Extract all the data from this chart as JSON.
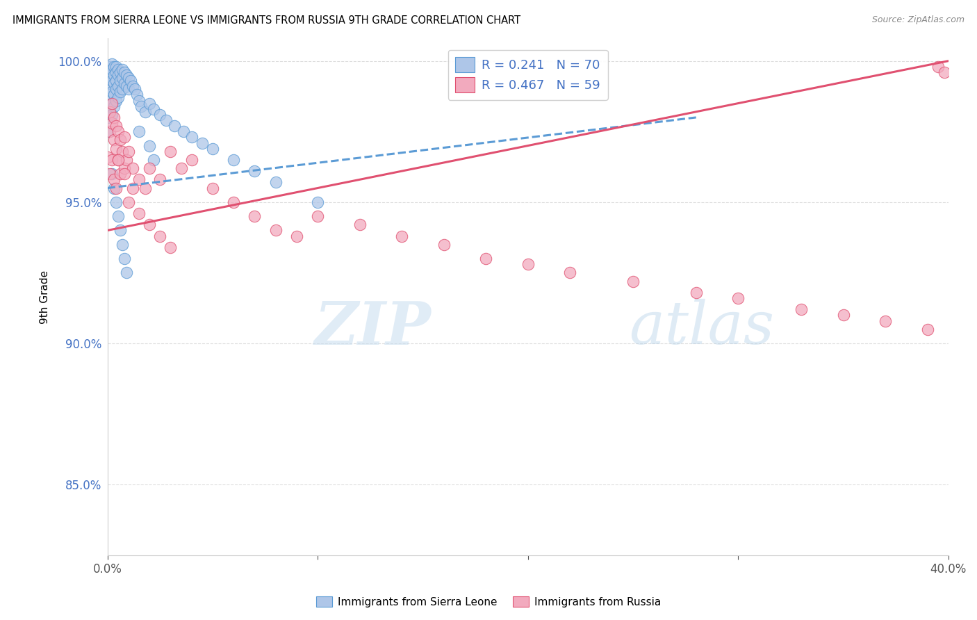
{
  "title": "IMMIGRANTS FROM SIERRA LEONE VS IMMIGRANTS FROM RUSSIA 9TH GRADE CORRELATION CHART",
  "source": "Source: ZipAtlas.com",
  "ylabel": "9th Grade",
  "R_sierra": 0.241,
  "N_sierra": 70,
  "R_russia": 0.467,
  "N_russia": 59,
  "color_sierra": "#aec6e8",
  "color_russia": "#f2aabe",
  "line_color_sierra": "#5b9bd5",
  "line_color_russia": "#e05070",
  "watermark_zip": "ZIP",
  "watermark_atlas": "atlas",
  "xlim": [
    0.0,
    0.4
  ],
  "ylim": [
    0.825,
    1.008
  ],
  "yticks": [
    0.85,
    0.9,
    0.95,
    1.0
  ],
  "ytick_labels": [
    "85.0%",
    "90.0%",
    "95.0%",
    "100.0%"
  ],
  "xticks": [
    0.0,
    0.1,
    0.2,
    0.3,
    0.4
  ],
  "xtick_labels": [
    "0.0%",
    "",
    "",
    "",
    "40.0%"
  ],
  "sierra_x": [
    0.0,
    0.0,
    0.001,
    0.001,
    0.001,
    0.001,
    0.001,
    0.002,
    0.002,
    0.002,
    0.002,
    0.002,
    0.002,
    0.003,
    0.003,
    0.003,
    0.003,
    0.003,
    0.004,
    0.004,
    0.004,
    0.004,
    0.004,
    0.005,
    0.005,
    0.005,
    0.005,
    0.006,
    0.006,
    0.006,
    0.007,
    0.007,
    0.007,
    0.008,
    0.008,
    0.009,
    0.009,
    0.01,
    0.01,
    0.011,
    0.012,
    0.013,
    0.014,
    0.015,
    0.016,
    0.018,
    0.02,
    0.022,
    0.025,
    0.028,
    0.032,
    0.036,
    0.04,
    0.045,
    0.05,
    0.06,
    0.07,
    0.08,
    0.1,
    0.015,
    0.02,
    0.022,
    0.002,
    0.003,
    0.004,
    0.005,
    0.006,
    0.007,
    0.008,
    0.009
  ],
  "sierra_y": [
    0.98,
    0.975,
    0.998,
    0.995,
    0.992,
    0.988,
    0.984,
    0.999,
    0.997,
    0.993,
    0.989,
    0.985,
    0.981,
    0.998,
    0.995,
    0.992,
    0.988,
    0.984,
    0.998,
    0.996,
    0.993,
    0.99,
    0.986,
    0.997,
    0.995,
    0.991,
    0.987,
    0.996,
    0.993,
    0.989,
    0.997,
    0.994,
    0.99,
    0.996,
    0.992,
    0.995,
    0.991,
    0.994,
    0.99,
    0.993,
    0.991,
    0.99,
    0.988,
    0.986,
    0.984,
    0.982,
    0.985,
    0.983,
    0.981,
    0.979,
    0.977,
    0.975,
    0.973,
    0.971,
    0.969,
    0.965,
    0.961,
    0.957,
    0.95,
    0.975,
    0.97,
    0.965,
    0.96,
    0.955,
    0.95,
    0.945,
    0.94,
    0.935,
    0.93,
    0.925
  ],
  "russia_x": [
    0.0,
    0.001,
    0.001,
    0.001,
    0.002,
    0.002,
    0.002,
    0.003,
    0.003,
    0.003,
    0.004,
    0.004,
    0.004,
    0.005,
    0.005,
    0.006,
    0.006,
    0.007,
    0.008,
    0.008,
    0.009,
    0.01,
    0.012,
    0.015,
    0.018,
    0.02,
    0.025,
    0.03,
    0.035,
    0.04,
    0.05,
    0.06,
    0.07,
    0.08,
    0.09,
    0.1,
    0.12,
    0.14,
    0.16,
    0.18,
    0.2,
    0.22,
    0.25,
    0.28,
    0.3,
    0.33,
    0.35,
    0.37,
    0.39,
    0.395,
    0.398,
    0.01,
    0.015,
    0.02,
    0.025,
    0.03,
    0.005,
    0.008,
    0.012
  ],
  "russia_y": [
    0.966,
    0.982,
    0.975,
    0.96,
    0.985,
    0.978,
    0.965,
    0.98,
    0.972,
    0.958,
    0.977,
    0.969,
    0.955,
    0.975,
    0.965,
    0.972,
    0.96,
    0.968,
    0.973,
    0.962,
    0.965,
    0.968,
    0.962,
    0.958,
    0.955,
    0.962,
    0.958,
    0.968,
    0.962,
    0.965,
    0.955,
    0.95,
    0.945,
    0.94,
    0.938,
    0.945,
    0.942,
    0.938,
    0.935,
    0.93,
    0.928,
    0.925,
    0.922,
    0.918,
    0.916,
    0.912,
    0.91,
    0.908,
    0.905,
    0.998,
    0.996,
    0.95,
    0.946,
    0.942,
    0.938,
    0.934,
    0.965,
    0.96,
    0.955
  ],
  "trendline_sierra_x0": 0.0,
  "trendline_sierra_x1": 0.28,
  "trendline_sierra_y0": 0.955,
  "trendline_sierra_y1": 0.98,
  "trendline_russia_x0": 0.0,
  "trendline_russia_x1": 0.4,
  "trendline_russia_y0": 0.94,
  "trendline_russia_y1": 1.0
}
